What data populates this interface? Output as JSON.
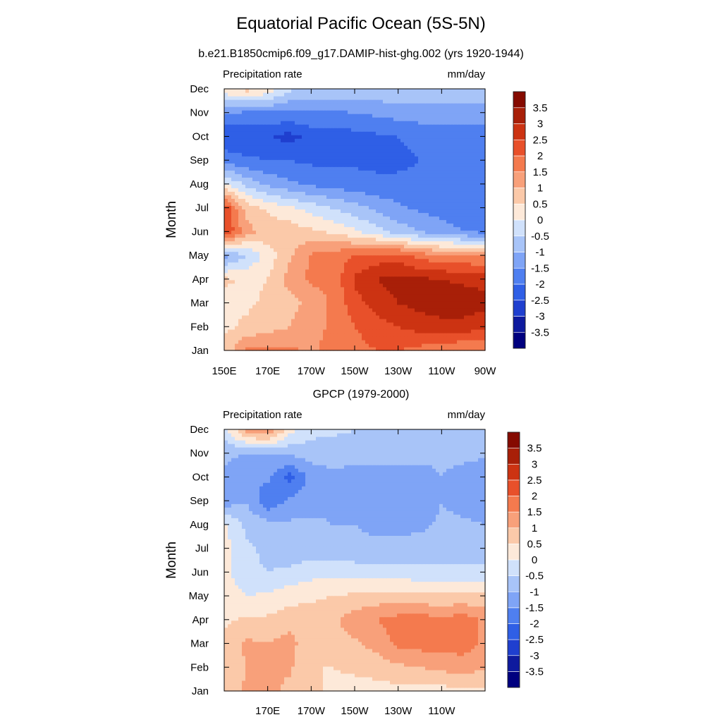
{
  "page": {
    "title": "Equatorial Pacific Ocean (5S-5N)"
  },
  "colors": {
    "levels_palette": [
      "#00007f",
      "#0e1a9e",
      "#1f3fcf",
      "#2f5fe6",
      "#4f7ff0",
      "#7fa4f6",
      "#a8c4f8",
      "#d0e1fb",
      "#fde9d9",
      "#fbc9a9",
      "#f8a07a",
      "#f47a4e",
      "#e8502a",
      "#cc3312",
      "#a81f08",
      "#850a00"
    ],
    "frame": "#000000"
  },
  "chart_data": [
    {
      "type": "heatmap",
      "title": "b.e21.B1850cmip6.f09_g17.DAMIP-hist-ghg.002 (yrs 1920-1944)",
      "left_label": "Precipitation rate",
      "right_label": "mm/day",
      "ylabel": "Month",
      "xlabel": "",
      "x_ticks": [
        "150E",
        "170E",
        "170W",
        "150W",
        "130W",
        "110W",
        "90W"
      ],
      "y_ticks": [
        "Jan",
        "Feb",
        "Mar",
        "Apr",
        "May",
        "Jun",
        "Jul",
        "Aug",
        "Sep",
        "Oct",
        "Nov",
        "Dec"
      ],
      "xlim_deg_east": [
        150,
        270
      ],
      "colorbar_labels": [
        "3.5",
        "3",
        "2.5",
        "2",
        "1.5",
        "1",
        "0.5",
        "0",
        "-0.5",
        "-1",
        "-1.5",
        "-2",
        "-2.5",
        "-3",
        "-3.5"
      ],
      "longitudes_deg_east": [
        150,
        160,
        170,
        180,
        190,
        200,
        210,
        220,
        230,
        240,
        250,
        260,
        270
      ],
      "months": [
        "Jan",
        "Feb",
        "Mar",
        "Apr",
        "May",
        "Jun",
        "Jul",
        "Aug",
        "Sep",
        "Oct",
        "Nov",
        "Dec"
      ],
      "values": [
        [
          0.6,
          1.6,
          1.7,
          1.6,
          1.4,
          1.7,
          1.8,
          2.0,
          2.0,
          1.8,
          1.6,
          1.5,
          1.5
        ],
        [
          0.4,
          0.6,
          0.8,
          1.0,
          1.3,
          1.6,
          2.0,
          2.3,
          2.5,
          2.7,
          2.8,
          2.8,
          2.6
        ],
        [
          0.3,
          0.4,
          0.6,
          0.8,
          1.2,
          1.6,
          2.3,
          2.7,
          3.0,
          3.2,
          3.3,
          3.3,
          3.2
        ],
        [
          0.6,
          0.4,
          0.5,
          1.2,
          1.6,
          1.6,
          2.6,
          3.0,
          3.2,
          3.1,
          3.0,
          2.9,
          2.8
        ],
        [
          -1.2,
          -0.5,
          0.2,
          0.9,
          1.6,
          1.8,
          2.0,
          2.2,
          2.2,
          1.8,
          1.6,
          1.6,
          1.4
        ],
        [
          2.6,
          1.2,
          0.8,
          0.8,
          0.6,
          0.4,
          0.1,
          -0.3,
          -0.7,
          -1.0,
          -1.3,
          -1.5,
          -1.6
        ],
        [
          2.5,
          0.8,
          0.4,
          0.1,
          -0.2,
          -0.5,
          -0.8,
          -1.1,
          -1.4,
          -1.6,
          -1.7,
          -1.7,
          -1.7
        ],
        [
          0.1,
          -0.6,
          -1.1,
          -1.4,
          -1.6,
          -1.7,
          -1.8,
          -1.9,
          -1.9,
          -1.9,
          -1.9,
          -1.8,
          -2.0
        ],
        [
          -1.7,
          -1.9,
          -2.0,
          -2.0,
          -2.1,
          -2.1,
          -2.1,
          -2.1,
          -2.1,
          -2.0,
          -1.8,
          -1.8,
          -1.8
        ],
        [
          -2.4,
          -2.4,
          -2.4,
          -2.7,
          -2.3,
          -2.2,
          -2.2,
          -2.1,
          -2.0,
          -1.9,
          -1.8,
          -1.8,
          -1.8
        ],
        [
          -1.5,
          -1.6,
          -1.6,
          -1.6,
          -1.6,
          -1.6,
          -1.5,
          -1.4,
          -1.3,
          -1.2,
          -1.2,
          -1.2,
          -1.2
        ],
        [
          0.4,
          0.7,
          0.4,
          -0.4,
          -0.6,
          -0.6,
          -0.6,
          -0.6,
          -0.6,
          -0.6,
          -0.6,
          -0.6,
          -0.6
        ]
      ]
    },
    {
      "type": "heatmap",
      "title": "GPCP (1979-2000)",
      "left_label": "Precipitation rate",
      "right_label": "mm/day",
      "ylabel": "Month",
      "xlabel": "",
      "x_ticks": [
        "170E",
        "170W",
        "150W",
        "130W",
        "110W"
      ],
      "y_ticks": [
        "Jan",
        "Feb",
        "Mar",
        "Apr",
        "May",
        "Jun",
        "Jul",
        "Aug",
        "Sep",
        "Oct",
        "Nov",
        "Dec"
      ],
      "xlim_deg_east": [
        150,
        270
      ],
      "colorbar_labels": [
        "3.5",
        "3",
        "2.5",
        "2",
        "1.5",
        "1",
        "0.5",
        "0",
        "-0.5",
        "-1",
        "-1.5",
        "-2",
        "-2.5",
        "-3",
        "-3.5"
      ],
      "longitudes_deg_east": [
        150,
        160,
        170,
        180,
        190,
        200,
        210,
        220,
        230,
        240,
        250,
        260,
        270
      ],
      "months": [
        "Jan",
        "Feb",
        "Mar",
        "Apr",
        "May",
        "Jun",
        "Jul",
        "Aug",
        "Sep",
        "Oct",
        "Nov",
        "Dec"
      ],
      "values": [
        [
          0.6,
          1.1,
          1.3,
          0.8,
          0.6,
          0.4,
          0.3,
          0.3,
          0.3,
          0.3,
          0.3,
          0.4,
          0.4
        ],
        [
          0.6,
          1.0,
          1.0,
          1.1,
          0.5,
          0.5,
          0.6,
          0.7,
          0.9,
          1.0,
          1.1,
          1.3,
          1.0
        ],
        [
          0.6,
          1.1,
          1.0,
          1.2,
          0.6,
          0.7,
          0.9,
          1.2,
          1.6,
          1.7,
          1.7,
          1.7,
          1.4
        ],
        [
          0.4,
          0.6,
          0.6,
          0.8,
          0.8,
          0.9,
          1.3,
          1.5,
          1.7,
          1.8,
          1.6,
          1.8,
          1.4
        ],
        [
          0.3,
          0.0,
          0.1,
          0.3,
          0.4,
          0.5,
          0.6,
          0.7,
          0.7,
          0.6,
          0.6,
          0.6,
          0.6
        ],
        [
          0.2,
          -0.4,
          -0.5,
          -0.4,
          -0.2,
          -0.1,
          -0.2,
          -0.3,
          -0.3,
          -0.3,
          -0.3,
          -0.3,
          -0.3
        ],
        [
          0.2,
          -0.4,
          -0.6,
          -0.8,
          -0.8,
          -0.8,
          -0.9,
          -0.9,
          -0.9,
          -0.8,
          -0.8,
          -0.8,
          -0.8
        ],
        [
          0.1,
          -0.6,
          -0.8,
          -0.9,
          -0.9,
          -1.0,
          -1.0,
          -1.1,
          -1.1,
          -1.1,
          -0.9,
          -0.9,
          -1.0
        ],
        [
          -1.3,
          -1.0,
          -1.9,
          -1.4,
          -1.2,
          -1.1,
          -1.4,
          -1.5,
          -1.5,
          -1.4,
          -1.0,
          -1.2,
          -1.4
        ],
        [
          -1.1,
          -1.4,
          -1.4,
          -2.2,
          -1.3,
          -1.1,
          -1.3,
          -1.4,
          -1.4,
          -1.4,
          -1.0,
          -1.3,
          -1.4
        ],
        [
          -0.9,
          -1.0,
          -1.0,
          -0.9,
          -0.8,
          -0.8,
          -0.7,
          -0.7,
          -0.7,
          -0.7,
          -0.8,
          -0.8,
          -0.9
        ],
        [
          -0.2,
          1.2,
          1.6,
          0.2,
          -0.3,
          -0.4,
          -0.5,
          -0.5,
          -0.5,
          -0.6,
          -0.6,
          -0.6,
          -0.6
        ]
      ]
    }
  ]
}
